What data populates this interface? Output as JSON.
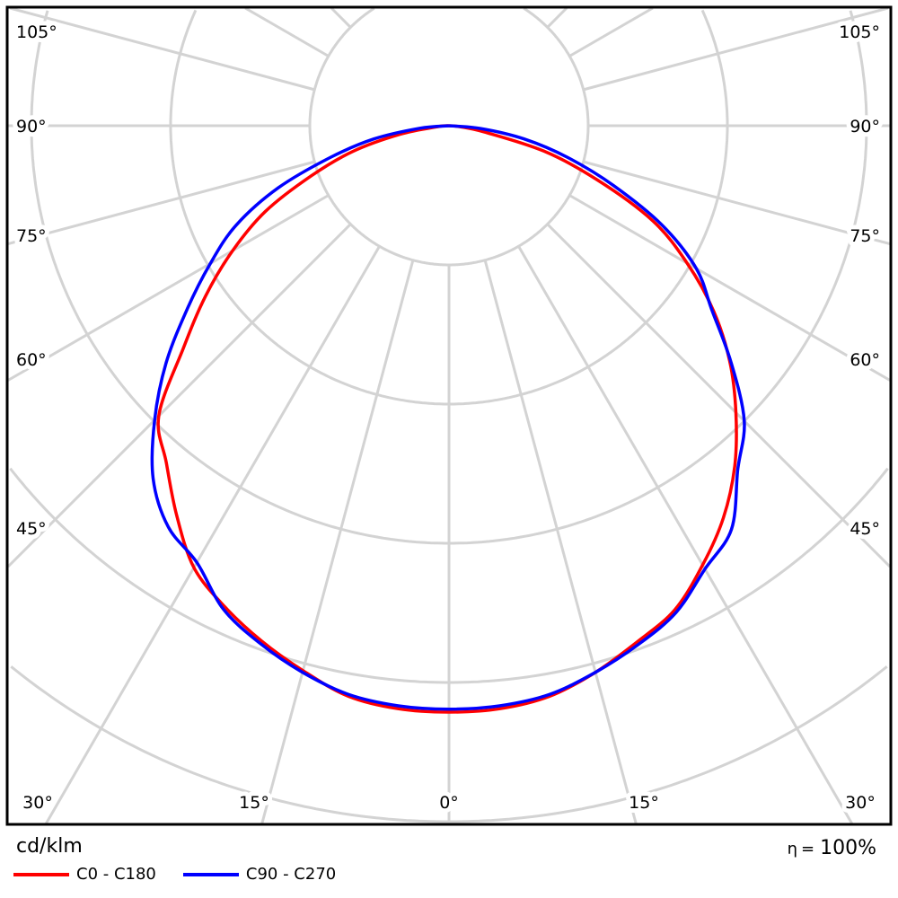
{
  "chart_data": {
    "type": "polar",
    "unit_label": "cd/klm",
    "efficiency_symbol": "η",
    "efficiency_equals": "=",
    "efficiency_value": "100%",
    "radial_scale": "relative intensity (no radial tick labels printed)",
    "angular_grid_step_deg": 15,
    "grid": true,
    "legend_placement": "bottom-left",
    "angle_labels": {
      "side": [
        "105°",
        "90°",
        "75°",
        "60°",
        "45°"
      ],
      "bottom": [
        "30°",
        "15°",
        "0°",
        "15°",
        "30°"
      ]
    },
    "angles_deg": [
      0,
      5,
      10,
      15,
      20,
      25,
      30,
      35,
      40,
      45,
      50,
      55,
      60,
      65,
      70,
      75,
      80,
      85,
      90
    ],
    "series": [
      {
        "name": "C0 - C180",
        "color": "#ff0000",
        "right_half": [
          1.0,
          0.998,
          0.988,
          0.965,
          0.937,
          0.911,
          0.865,
          0.816,
          0.758,
          0.692,
          0.625,
          0.551,
          0.469,
          0.383,
          0.268,
          0.168,
          0.061,
          0.018,
          0
        ],
        "left_half": [
          1.0,
          0.998,
          0.988,
          0.962,
          0.935,
          0.905,
          0.87,
          0.81,
          0.75,
          0.7,
          0.592,
          0.507,
          0.426,
          0.345,
          0.25,
          0.17,
          0.085,
          0.02,
          0
        ]
      },
      {
        "name": "C90 - C270",
        "color": "#0000ff",
        "right_half": [
          0.995,
          0.993,
          0.985,
          0.965,
          0.942,
          0.916,
          0.873,
          0.84,
          0.766,
          0.712,
          0.628,
          0.547,
          0.487,
          0.401,
          0.299,
          0.21,
          0.13,
          0.054,
          0
        ],
        "left_half": [
          0.995,
          0.993,
          0.985,
          0.965,
          0.94,
          0.91,
          0.86,
          0.835,
          0.785,
          0.71,
          0.63,
          0.545,
          0.47,
          0.4,
          0.31,
          0.21,
          0.13,
          0.05,
          0
        ]
      }
    ]
  }
}
